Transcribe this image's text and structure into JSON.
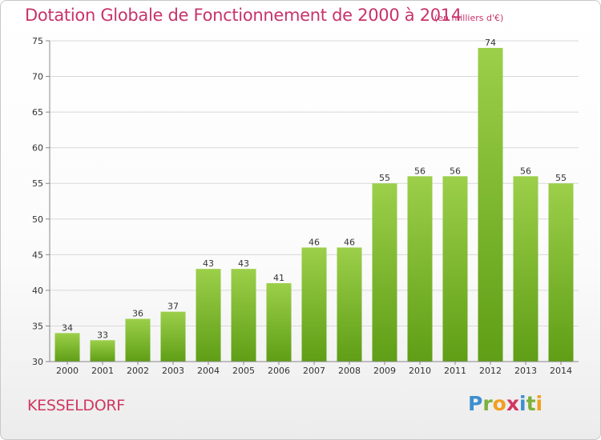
{
  "header": {
    "title": "Dotation Globale de Fonctionnement de 2000 à 2014",
    "unit": "(en milliers d'€)"
  },
  "footer": {
    "commune": "KESSELDORF",
    "logo_letters": [
      "P",
      "r",
      "o",
      "x",
      "i",
      "t",
      "i"
    ],
    "logo_colors": [
      "#3d8fd0",
      "#7cb13a",
      "#f0a020",
      "#d0385f",
      "#3d8fd0",
      "#7cb13a",
      "#f0a020"
    ]
  },
  "colors": {
    "bar_light": "#9ccf4a",
    "bar_dark": "#5f9e16",
    "grid": "#d8d8d8",
    "axis": "#888888",
    "text": "#333333",
    "title": "#c8336a"
  },
  "chart_data": {
    "type": "bar",
    "categories": [
      "2000",
      "2001",
      "2002",
      "2003",
      "2004",
      "2005",
      "2006",
      "2007",
      "2008",
      "2009",
      "2010",
      "2011",
      "2012",
      "2013",
      "2014"
    ],
    "values": [
      34,
      33,
      36,
      37,
      43,
      43,
      41,
      46,
      46,
      55,
      56,
      56,
      74,
      56,
      55
    ],
    "ylim": [
      30,
      75
    ],
    "yticks": [
      30,
      35,
      40,
      45,
      50,
      55,
      60,
      65,
      70,
      75
    ],
    "grid": true,
    "xlabel": "",
    "ylabel": ""
  }
}
